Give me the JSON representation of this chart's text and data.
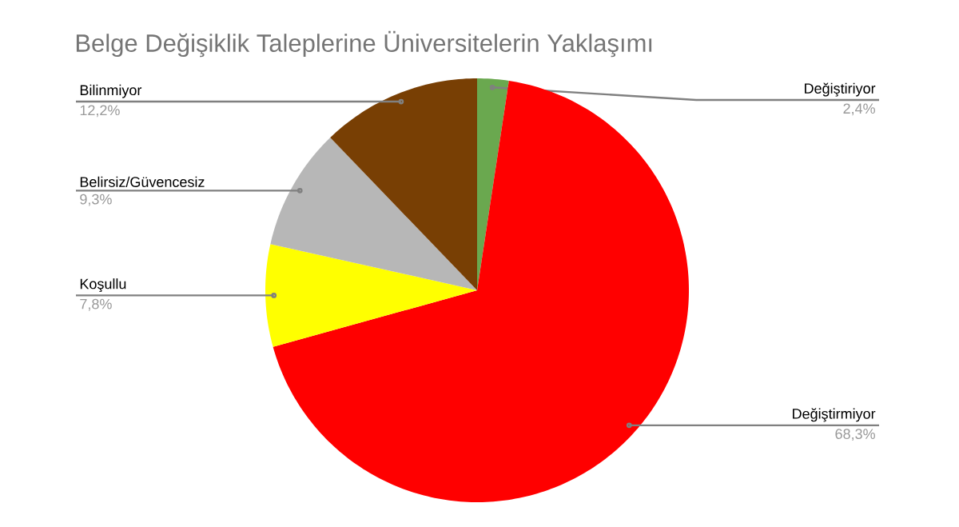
{
  "chart_data": {
    "type": "pie",
    "title": "Belge Değişiklik Taleplerine Üniversitelerin Yaklaşımı",
    "categories": [
      "Değiştiriyor",
      "Değiştirmiyor",
      "Koşullu",
      "Belirsiz/Güvencesiz",
      "Bilinmiyor"
    ],
    "values": [
      2.4,
      68.3,
      7.8,
      9.3,
      12.2
    ],
    "colors": [
      "#6aa84f",
      "#ff0000",
      "#ffff00",
      "#b7b7b7",
      "#783f04"
    ],
    "value_labels": [
      "2,4%",
      "68,3%",
      "7,8%",
      "9,3%",
      "12,2%"
    ]
  }
}
